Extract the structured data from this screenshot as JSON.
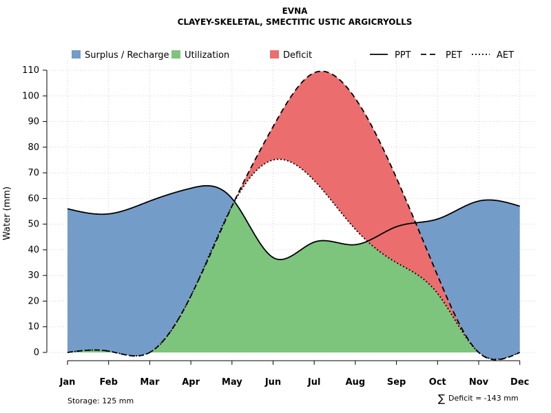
{
  "chart_data": {
    "type": "area",
    "title": "EVNA",
    "subtitle": "CLAYEY-SKELETAL, SMECTITIC USTIC ARGICRYOLLS",
    "ylabel": "Water (mm)",
    "xlabel": "",
    "ylim": [
      0,
      110
    ],
    "y_ticks": [
      0,
      10,
      20,
      30,
      40,
      50,
      60,
      70,
      80,
      90,
      100,
      110
    ],
    "grid": true,
    "categories": [
      "Jan",
      "Feb",
      "Mar",
      "Apr",
      "May",
      "Jun",
      "Jul",
      "Aug",
      "Sep",
      "Oct",
      "Nov",
      "Dec"
    ],
    "series": [
      {
        "name": "PPT",
        "line_style": "solid",
        "values": [
          56,
          54,
          59,
          64,
          60,
          37,
          43,
          42,
          49,
          52,
          59,
          57
        ]
      },
      {
        "name": "PET",
        "line_style": "dashed",
        "values": [
          0,
          0.5,
          0,
          22,
          57,
          88,
          109,
          99,
          68,
          30,
          0,
          0
        ]
      },
      {
        "name": "AET",
        "line_style": "dotted",
        "values": [
          0,
          0.5,
          0,
          22,
          57,
          75,
          67,
          48,
          35,
          23,
          0,
          0
        ]
      }
    ],
    "legend": [
      {
        "label": "Surplus / Recharge",
        "kind": "fill",
        "color": "#739CC8"
      },
      {
        "label": "Utilization",
        "kind": "fill",
        "color": "#7DC47C"
      },
      {
        "label": "Deficit",
        "kind": "fill",
        "color": "#EB6D6E"
      },
      {
        "label": "PPT",
        "kind": "line",
        "style": "solid"
      },
      {
        "label": "PET",
        "kind": "line",
        "style": "dashed"
      },
      {
        "label": "AET",
        "kind": "line",
        "style": "dotted"
      }
    ],
    "legend_position": "top",
    "annotations": {
      "storage": "Storage: 125 mm",
      "deficit": "Deficit = -143 mm",
      "deficit_symbol": "∑"
    },
    "colors": {
      "surplus": "#739CC8",
      "utilization": "#7DC47C",
      "deficit": "#EB6D6E"
    }
  }
}
